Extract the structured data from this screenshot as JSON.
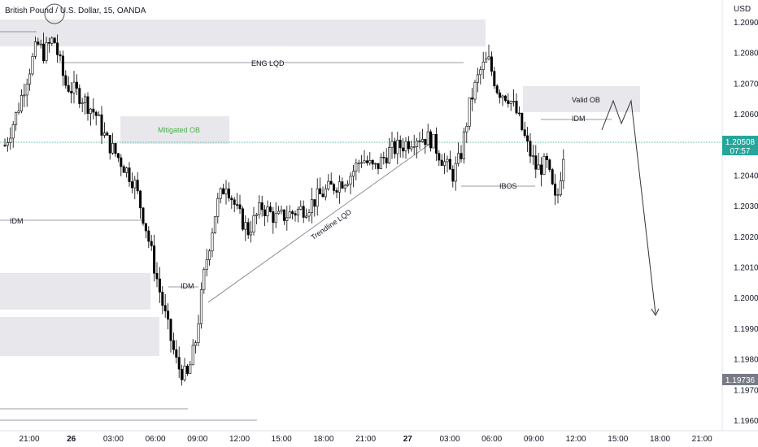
{
  "chart_data": {
    "type": "candlestick",
    "title": "British Pound / U.S. Dollar, 15, OANDA",
    "currency_label": "USD",
    "y_range": [
      1.196,
      1.2095
    ],
    "y_ticks": [
      "1.20900",
      "1.20800",
      "1.20700",
      "1.20600",
      "1.20500",
      "1.20400",
      "1.20300",
      "1.20200",
      "1.20100",
      "1.20000",
      "1.19900",
      "1.19800",
      "1.19700",
      "1.19600"
    ],
    "x_ticks": [
      "21:00",
      "26",
      "03:00",
      "06:00",
      "09:00",
      "12:00",
      "15:00",
      "18:00",
      "21:00",
      "27",
      "03:00",
      "06:00",
      "09:00",
      "12:00",
      "15:00",
      "18:00",
      "21:00"
    ],
    "x_ticks_bold": [
      "26",
      "27"
    ],
    "price_labels": {
      "last_price": "1.20508",
      "countdown": "07:57",
      "low_marker": "1.19736"
    },
    "colors": {
      "up": "#ffffff",
      "down": "#000000",
      "wick": "#000000",
      "zone": "#e8e8ec",
      "mitigated_text": "#4caf50",
      "last_price_bg": "#26a69a",
      "low_marker_bg": "#787b86"
    },
    "annotations": {
      "eng_lqd": "ENG LQD",
      "mitigated_ob": "Mitigated OB",
      "idm_left": "IDM",
      "idm_mid": "IDM",
      "idm_right": "IDM",
      "valid_ob": "Valid OB",
      "ibos": "IBOS",
      "trendline": "Trendline LQD"
    }
  }
}
